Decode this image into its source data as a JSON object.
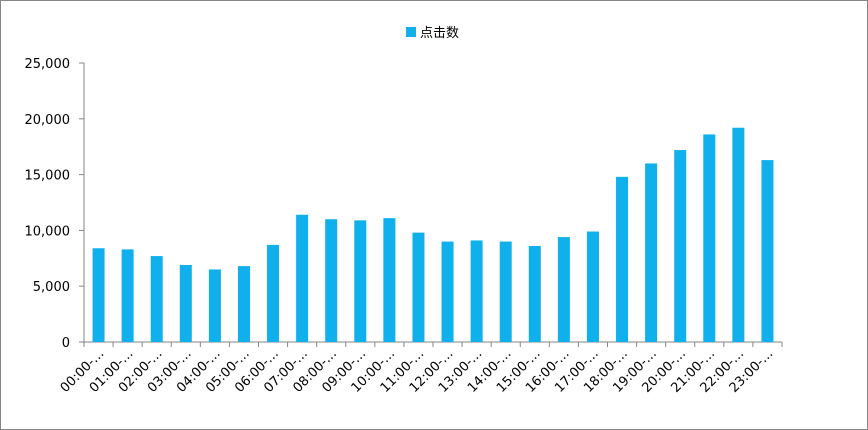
{
  "chart_data": {
    "type": "bar",
    "categories": [
      "00:00-…",
      "01:00-…",
      "02:00-…",
      "03:00-…",
      "04:00-…",
      "05:00-…",
      "06:00-…",
      "07:00-…",
      "08:00-…",
      "09:00-…",
      "10:00-…",
      "11:00-…",
      "12:00-…",
      "13:00-…",
      "14:00-…",
      "15:00-…",
      "16:00-…",
      "17:00-…",
      "18:00-…",
      "19:00-…",
      "20:00-…",
      "21:00-…",
      "22:00-…",
      "23:00-…"
    ],
    "series": [
      {
        "name": "点击数",
        "color": "#0fb0ec",
        "values": [
          8400,
          8300,
          7700,
          6900,
          6500,
          6800,
          8700,
          11400,
          11000,
          10900,
          11100,
          9800,
          9000,
          9100,
          9000,
          8600,
          9400,
          9900,
          14800,
          16000,
          17200,
          18600,
          19200,
          16300
        ]
      }
    ],
    "ylim": [
      0,
      25000
    ],
    "yticks": [
      0,
      {
        "value": 5000,
        "label": "5,000"
      },
      {
        "value": 10000,
        "label": "10,000"
      },
      {
        "value": 15000,
        "label": "15,000"
      },
      {
        "value": 20000,
        "label": "20,000"
      },
      {
        "value": 25000,
        "label": "25,000"
      }
    ],
    "legend": "top",
    "grid": false
  }
}
